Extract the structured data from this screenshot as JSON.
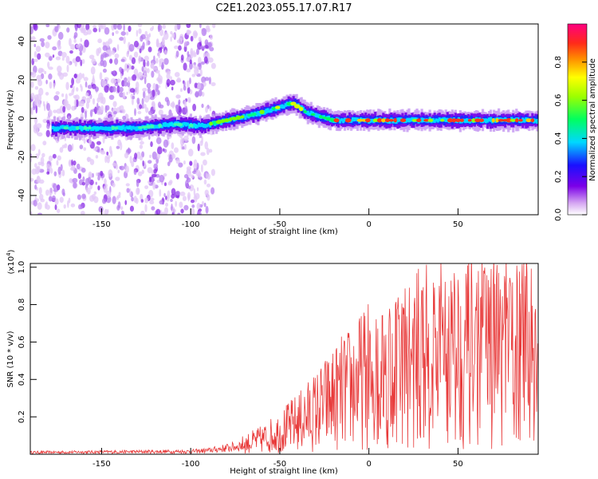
{
  "title": "C2E1.2023.055.17.07.R17",
  "colors": {
    "snr_line": "#e83a3a",
    "axis": "#000000",
    "background": "#ffffff"
  },
  "chart_data": [
    {
      "type": "heatmap",
      "xlabel": "Height of straight line (km)",
      "ylabel": "Frequency (Hz)",
      "xlim": [
        -190,
        95
      ],
      "ylim": [
        -50,
        49
      ],
      "x_ticks": [
        -150,
        -100,
        -50,
        0,
        50
      ],
      "y_ticks": [
        -40,
        -20,
        0,
        20,
        40
      ],
      "colorbar": {
        "label": "Normalized spectral amplitude",
        "range": [
          0,
          1
        ],
        "ticks": [
          0.0,
          0.2,
          0.4,
          0.6,
          0.8
        ],
        "colormap": "rainbow (violet to red)"
      },
      "ridge": {
        "x": [
          -190,
          -170,
          -150,
          -130,
          -110,
          -95,
          -80,
          -65,
          -50,
          -43,
          -35,
          -20,
          -5,
          10,
          30,
          50,
          70,
          95
        ],
        "y": [
          -5,
          -5,
          -5,
          -5,
          -3,
          -4,
          -1,
          2,
          6,
          8,
          3,
          -1,
          -1,
          -1,
          -1,
          -1,
          -1,
          -1
        ]
      },
      "noise_region_x": [
        -190,
        -93
      ]
    },
    {
      "type": "line",
      "xlabel": "Height of straight line (km)",
      "ylabel": "SNR (10 * v/v)",
      "y_multiplier": "(x10",
      "y_multiplier_exp": "4",
      "y_multiplier_close": ")",
      "xlim": [
        -190,
        95
      ],
      "ylim": [
        0,
        1.02
      ],
      "x_ticks": [
        -150,
        -100,
        -50,
        0,
        50
      ],
      "y_ticks": [
        0.2,
        0.4,
        0.6,
        0.8,
        1.0
      ],
      "series": [
        {
          "x": [
            -190,
            -100,
            -90,
            -75,
            -60,
            -50,
            -40,
            -30,
            -20,
            -10,
            0,
            10,
            20,
            30,
            40,
            50,
            60,
            70,
            80,
            95
          ],
          "y": [
            0.01,
            0.015,
            0.02,
            0.04,
            0.08,
            0.12,
            0.17,
            0.23,
            0.3,
            0.36,
            0.42,
            0.45,
            0.48,
            0.52,
            0.55,
            0.55,
            0.56,
            0.55,
            0.55,
            0.55
          ]
        }
      ]
    }
  ]
}
